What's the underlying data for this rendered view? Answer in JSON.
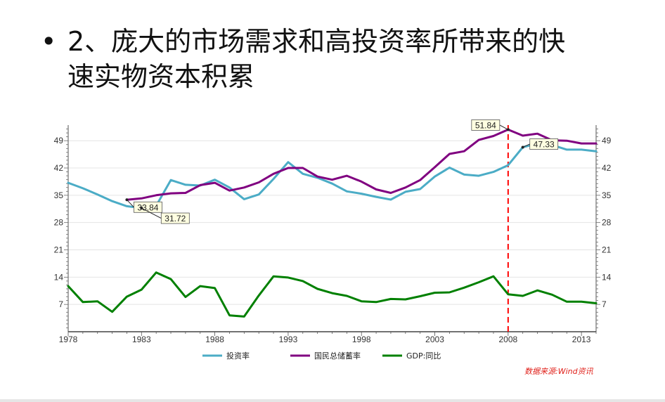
{
  "slide": {
    "bullet": "•",
    "title_line1": "2、庞大的市场需求和高投资率所带来的快",
    "title_line2": "速实物资本积累",
    "source_note": "数据来源:Wind资讯"
  },
  "chart_data": {
    "type": "line",
    "x": [
      1978,
      1979,
      1980,
      1981,
      1982,
      1983,
      1984,
      1985,
      1986,
      1987,
      1988,
      1989,
      1990,
      1991,
      1992,
      1993,
      1994,
      1995,
      1996,
      1997,
      1998,
      1999,
      2000,
      2001,
      2002,
      2003,
      2004,
      2005,
      2006,
      2007,
      2008,
      2009,
      2010,
      2011,
      2012,
      2013,
      2014
    ],
    "xlim": [
      1978,
      2014
    ],
    "ylim": [
      0,
      53
    ],
    "x_ticks": [
      1978,
      1983,
      1988,
      1993,
      1998,
      2003,
      2008,
      2013
    ],
    "y_ticks": [
      7,
      14,
      21,
      28,
      35,
      42,
      49
    ],
    "grid": "horizontal",
    "legend_position": "bottom",
    "series": [
      {
        "name": "投资率",
        "color": "#4bacc6",
        "values": [
          38.2,
          36.8,
          35.2,
          33.5,
          32.2,
          31.72,
          32.3,
          38.9,
          37.7,
          37.5,
          39.0,
          37.0,
          34.0,
          35.2,
          39.2,
          43.5,
          40.5,
          39.5,
          38.0,
          36.0,
          35.4,
          34.6,
          33.9,
          35.9,
          36.6,
          39.8,
          42.1,
          40.3,
          40.0,
          41.0,
          42.7,
          47.33,
          48.3,
          47.9,
          46.7,
          46.7,
          46.3
        ]
      },
      {
        "name": "国民总储蓄率",
        "color": "#800080",
        "values": [
          null,
          null,
          null,
          null,
          33.84,
          34.2,
          35.0,
          35.5,
          35.6,
          37.6,
          38.2,
          36.2,
          37.0,
          38.3,
          40.5,
          42.0,
          42.0,
          39.8,
          39.0,
          40.0,
          38.5,
          36.5,
          35.6,
          37.0,
          38.9,
          42.2,
          45.6,
          46.3,
          49.2,
          50.2,
          51.84,
          50.3,
          50.8,
          49.1,
          49.0,
          48.3,
          48.3
        ]
      },
      {
        "name": "GDP:同比",
        "color": "#008000",
        "values": [
          11.7,
          7.6,
          7.8,
          5.1,
          9.0,
          10.8,
          15.2,
          13.5,
          8.9,
          11.7,
          11.2,
          4.2,
          3.9,
          9.3,
          14.2,
          13.9,
          13.0,
          11.0,
          9.9,
          9.2,
          7.8,
          7.6,
          8.4,
          8.3,
          9.1,
          10.0,
          10.1,
          11.3,
          12.7,
          14.2,
          9.6,
          9.2,
          10.6,
          9.5,
          7.7,
          7.7,
          7.3
        ]
      }
    ],
    "annotations": [
      {
        "label": "33.84",
        "series": 1,
        "x": 1982
      },
      {
        "label": "31.72",
        "series": 0,
        "x": 1983
      },
      {
        "label": "51.84",
        "series": 1,
        "x": 2008
      },
      {
        "label": "47.33",
        "series": 0,
        "x": 2009
      }
    ],
    "reference_line": {
      "x": 2008,
      "color": "#ff0000",
      "style": "dashed"
    }
  }
}
